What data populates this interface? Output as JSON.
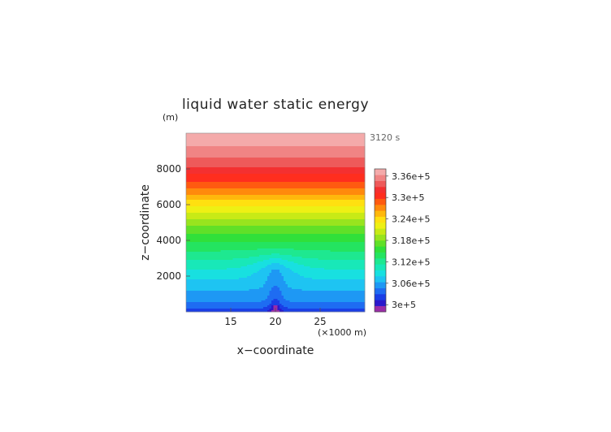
{
  "chart_data": {
    "type": "heatmap",
    "title": "liquid water static energy",
    "time_label": "3120 s",
    "xlabel": "x−coordinate",
    "ylabel": "z−coordinate",
    "y_unit": "(m)",
    "x_unit": "(×1000 m)",
    "xlim": [
      10,
      30
    ],
    "ylim": [
      0,
      10000
    ],
    "x_ticks": [
      15,
      20,
      25
    ],
    "y_ticks": [
      2000,
      4000,
      6000,
      8000
    ],
    "colorbar": {
      "vmin": 298000,
      "vmax": 338000,
      "tick_values": [
        300000,
        306000,
        312000,
        318000,
        324000,
        330000,
        336000
      ],
      "tick_labels": [
        "3e+5",
        "3.06e+5",
        "3.12e+5",
        "3.18e+5",
        "3.24e+5",
        "3.3e+5",
        "3.36e+5"
      ],
      "colors": [
        "#9a2ca8",
        "#2a18cc",
        "#1a3ee6",
        "#1e6cf2",
        "#1e98f4",
        "#1ec4f2",
        "#18e0e0",
        "#18e8b8",
        "#1ee890",
        "#24e460",
        "#30e03a",
        "#60e028",
        "#98e41e",
        "#c8ea16",
        "#eef014",
        "#ffe010",
        "#ffb80c",
        "#ff8a0c",
        "#ff5a10",
        "#ff2e1e",
        "#f43030",
        "#ee5a5a",
        "#f08484",
        "#f4aaaa"
      ]
    },
    "profile": {
      "z": [
        0,
        400,
        800,
        1200,
        1600,
        2000,
        2400,
        2800,
        3200,
        4000,
        5000,
        6000,
        7000,
        8000,
        9000,
        10000
      ],
      "value": [
        302000,
        304200,
        305500,
        306400,
        307500,
        308600,
        309700,
        310900,
        312300,
        315000,
        318800,
        323500,
        328300,
        332700,
        335800,
        337600
      ]
    },
    "plume": {
      "center_x": 20,
      "width_x": 0.9,
      "top_z": 3400,
      "core_delta": -2200,
      "bulge_delta": -2200
    }
  }
}
